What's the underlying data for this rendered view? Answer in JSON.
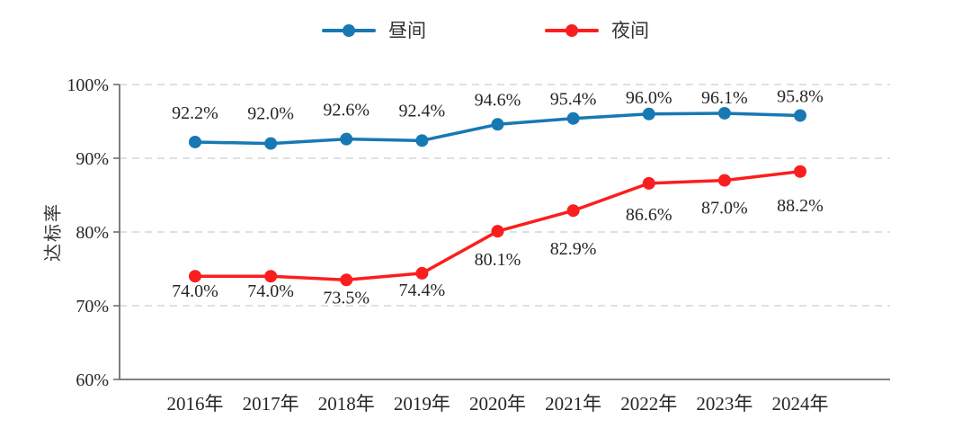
{
  "chart_data": {
    "type": "line",
    "title": "",
    "categories": [
      "2016年",
      "2017年",
      "2018年",
      "2019年",
      "2020年",
      "2021年",
      "2022年",
      "2023年",
      "2024年"
    ],
    "series": [
      {
        "name": "昼间",
        "color": "#1878b4",
        "values": [
          92.2,
          92.0,
          92.6,
          92.4,
          94.6,
          95.4,
          96.0,
          96.1,
          95.8
        ],
        "label_position": "above"
      },
      {
        "name": "夜间",
        "color": "#fb1e1e",
        "values": [
          74.0,
          74.0,
          73.5,
          74.4,
          80.1,
          82.9,
          86.6,
          87.0,
          88.2
        ],
        "label_position": "below"
      }
    ],
    "xlabel": "",
    "ylabel": "达标率",
    "ylim": [
      60,
      100
    ],
    "y_ticks": [
      100,
      90,
      80,
      70,
      60
    ],
    "y_tick_labels": [
      "100%",
      "90%",
      "80%",
      "70%",
      "60%"
    ],
    "grid": "horizontal-dashed",
    "grid_color": "#d5d5d5",
    "axis_color": "#6f6f6f",
    "text_color": "#262626",
    "legend_position": "top-center",
    "data_labels": true,
    "marker": "circle"
  }
}
